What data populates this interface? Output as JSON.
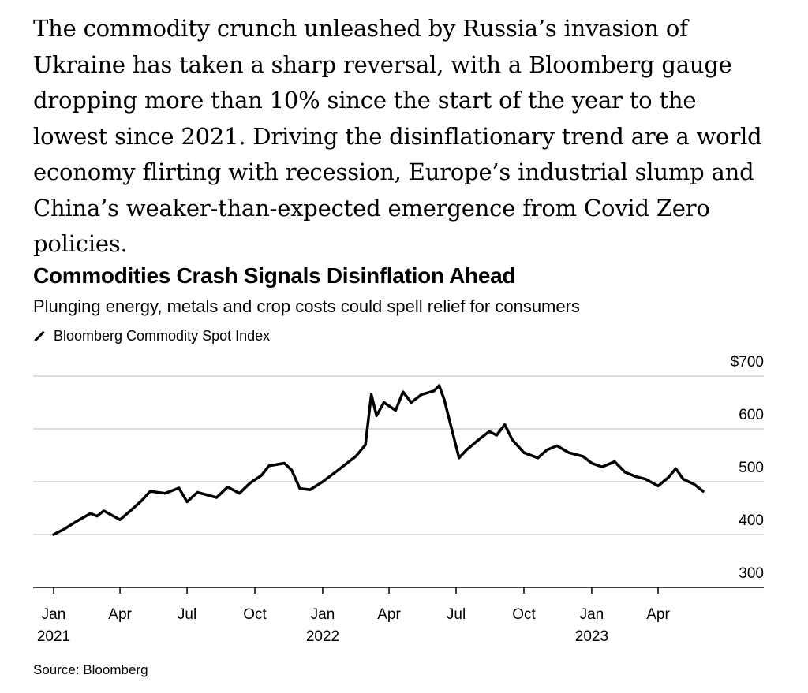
{
  "article": {
    "paragraph": "The commodity crunch unleashed by Russia’s invasion of Ukraine has taken a sharp reversal, with a Bloomberg gauge dropping more than 10% since the start of the year to the lowest since 2021. Driving the disinflationary trend are a world economy flirting with recession, Europe’s industrial slump and China’s weaker-than-expected emergence from Covid Zero policies."
  },
  "chart_data": {
    "type": "line",
    "title": "Commodities Crash Signals Disinflation Ahead",
    "subtitle": "Plunging energy, metals and crop costs could spell relief for consumers",
    "legend": "Bloomberg Commodity Spot Index",
    "source": "Source: Bloomberg",
    "ylim": [
      300,
      700
    ],
    "y_ticks": [
      {
        "value": 700,
        "label": "$700"
      },
      {
        "value": 600,
        "label": "600"
      },
      {
        "value": 500,
        "label": "500"
      },
      {
        "value": 400,
        "label": "400"
      },
      {
        "value": 300,
        "label": "300"
      }
    ],
    "x_ticks": [
      {
        "date": "2021-01-01",
        "month": "Jan",
        "year": "2021"
      },
      {
        "date": "2021-04-01",
        "month": "Apr",
        "year": ""
      },
      {
        "date": "2021-07-01",
        "month": "Jul",
        "year": ""
      },
      {
        "date": "2021-10-01",
        "month": "Oct",
        "year": ""
      },
      {
        "date": "2022-01-01",
        "month": "Jan",
        "year": "2022"
      },
      {
        "date": "2022-04-01",
        "month": "Apr",
        "year": ""
      },
      {
        "date": "2022-07-01",
        "month": "Jul",
        "year": ""
      },
      {
        "date": "2022-10-01",
        "month": "Oct",
        "year": ""
      },
      {
        "date": "2023-01-01",
        "month": "Jan",
        "year": "2023"
      },
      {
        "date": "2023-04-01",
        "month": "Apr",
        "year": ""
      }
    ],
    "x_range": [
      "2020-12-01",
      "2023-07-31"
    ],
    "series": [
      {
        "name": "Bloomberg Commodity Spot Index",
        "points": [
          [
            "2021-01-01",
            400
          ],
          [
            "2021-01-15",
            410
          ],
          [
            "2021-02-01",
            425
          ],
          [
            "2021-02-20",
            440
          ],
          [
            "2021-03-01",
            435
          ],
          [
            "2021-03-10",
            445
          ],
          [
            "2021-04-01",
            428
          ],
          [
            "2021-04-15",
            445
          ],
          [
            "2021-05-01",
            465
          ],
          [
            "2021-05-12",
            482
          ],
          [
            "2021-06-01",
            478
          ],
          [
            "2021-06-20",
            488
          ],
          [
            "2021-07-01",
            462
          ],
          [
            "2021-07-15",
            480
          ],
          [
            "2021-08-10",
            470
          ],
          [
            "2021-08-25",
            490
          ],
          [
            "2021-09-10",
            478
          ],
          [
            "2021-09-25",
            498
          ],
          [
            "2021-10-10",
            512
          ],
          [
            "2021-10-20",
            530
          ],
          [
            "2021-11-10",
            535
          ],
          [
            "2021-11-20",
            522
          ],
          [
            "2021-12-01",
            487
          ],
          [
            "2021-12-15",
            485
          ],
          [
            "2022-01-01",
            500
          ],
          [
            "2022-01-20",
            520
          ],
          [
            "2022-02-15",
            548
          ],
          [
            "2022-02-28",
            570
          ],
          [
            "2022-03-08",
            665
          ],
          [
            "2022-03-15",
            625
          ],
          [
            "2022-03-25",
            650
          ],
          [
            "2022-04-10",
            635
          ],
          [
            "2022-04-20",
            670
          ],
          [
            "2022-05-01",
            650
          ],
          [
            "2022-05-15",
            665
          ],
          [
            "2022-06-01",
            672
          ],
          [
            "2022-06-08",
            682
          ],
          [
            "2022-06-15",
            655
          ],
          [
            "2022-06-25",
            600
          ],
          [
            "2022-07-05",
            545
          ],
          [
            "2022-07-15",
            560
          ],
          [
            "2022-08-01",
            580
          ],
          [
            "2022-08-15",
            595
          ],
          [
            "2022-08-25",
            588
          ],
          [
            "2022-09-05",
            608
          ],
          [
            "2022-09-15",
            580
          ],
          [
            "2022-10-01",
            555
          ],
          [
            "2022-10-20",
            545
          ],
          [
            "2022-11-01",
            560
          ],
          [
            "2022-11-15",
            568
          ],
          [
            "2022-12-01",
            555
          ],
          [
            "2022-12-20",
            548
          ],
          [
            "2023-01-01",
            535
          ],
          [
            "2023-01-15",
            528
          ],
          [
            "2023-02-01",
            538
          ],
          [
            "2023-02-15",
            518
          ],
          [
            "2023-03-01",
            510
          ],
          [
            "2023-03-15",
            505
          ],
          [
            "2023-04-01",
            492
          ],
          [
            "2023-04-15",
            508
          ],
          [
            "2023-04-25",
            525
          ],
          [
            "2023-05-05",
            505
          ],
          [
            "2023-05-20",
            495
          ],
          [
            "2023-06-01",
            482
          ]
        ]
      }
    ]
  }
}
